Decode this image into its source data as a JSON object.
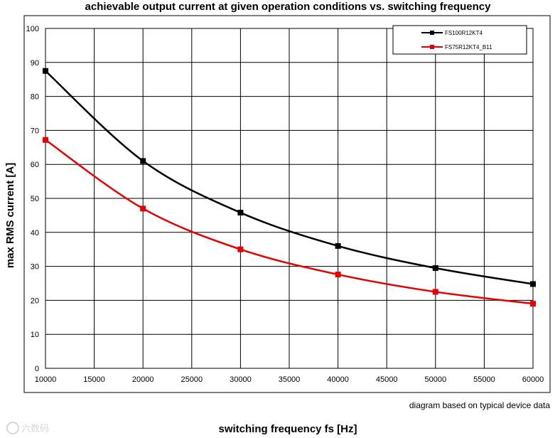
{
  "colors": {
    "series_black": "#000000",
    "series_red": "#e60000",
    "grid": "#000000",
    "watermark": "#bbbbbb"
  },
  "chart_data": {
    "type": "line",
    "title": "achievable output current at given operation conditions vs. switching frequency",
    "xlabel": "switching frequency fs [Hz]",
    "ylabel": "max RMS current [A]",
    "note": "diagram based on typical device data",
    "xlim": [
      10000,
      60000
    ],
    "ylim": [
      0,
      100
    ],
    "xticks": [
      10000,
      15000,
      20000,
      25000,
      30000,
      35000,
      40000,
      45000,
      50000,
      55000,
      60000
    ],
    "yticks": [
      0,
      10,
      20,
      30,
      40,
      50,
      60,
      70,
      80,
      90,
      100
    ],
    "grid": true,
    "legend_position": "top-right",
    "x": [
      10000,
      20000,
      30000,
      40000,
      50000,
      60000
    ],
    "series": [
      {
        "name": "FS100R12KT4",
        "color": "#000000",
        "values": [
          87.5,
          61,
          45.8,
          36,
          29.5,
          24.8
        ]
      },
      {
        "name": "FS75R12KT4_B11",
        "color": "#e60000",
        "values": [
          67.2,
          47,
          35,
          27.6,
          22.5,
          19
        ]
      }
    ]
  },
  "watermark": {
    "text": "六数码",
    "icon": "watermark-logo-icon"
  }
}
